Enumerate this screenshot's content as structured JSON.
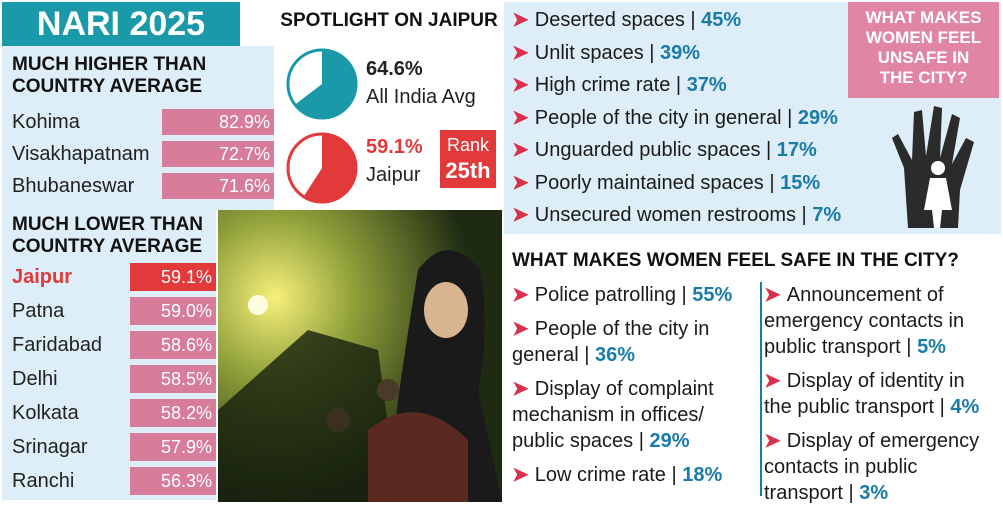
{
  "title": "NARI 2025",
  "higher": {
    "heading_line1": "MUCH HIGHER THAN",
    "heading_line2": "COUNTRY AVERAGE",
    "rows": [
      {
        "city": "Kohima",
        "value": "82.9%"
      },
      {
        "city": "Visakhapatnam",
        "value": "72.7%"
      },
      {
        "city": "Bhubaneswar",
        "value": "71.6%"
      }
    ]
  },
  "lower": {
    "heading_line1": "MUCH LOWER THAN",
    "heading_line2": "COUNTRY AVERAGE",
    "rows": [
      {
        "city": "Jaipur",
        "value": "59.1%"
      },
      {
        "city": "Patna",
        "value": "59.0%"
      },
      {
        "city": "Faridabad",
        "value": "58.6%"
      },
      {
        "city": "Delhi",
        "value": "58.5%"
      },
      {
        "city": "Kolkata",
        "value": "58.2%"
      },
      {
        "city": "Srinagar",
        "value": "57.9%"
      },
      {
        "city": "Ranchi",
        "value": "56.3%"
      }
    ]
  },
  "spotlight": {
    "title": "SPOTLIGHT ON JAIPUR",
    "all_india": {
      "value": "64.6%",
      "label": "All India Avg"
    },
    "jaipur": {
      "value": "59.1%",
      "label": "Jaipur"
    },
    "rank_label": "Rank",
    "rank_value": "25th"
  },
  "unsafe": {
    "question_line1": "WHAT MAKES",
    "question_line2": "WOMEN FEEL",
    "question_line3": "UNSAFE IN",
    "question_line4": "THE CITY?",
    "items": [
      {
        "text": "Deserted spaces |",
        "pct": "45%"
      },
      {
        "text": "Unlit spaces |",
        "pct": "39%"
      },
      {
        "text": "High crime rate |",
        "pct": "37%"
      },
      {
        "text": "People of the city in general |",
        "pct": "29%"
      },
      {
        "text": "Unguarded public spaces |",
        "pct": "17%"
      },
      {
        "text": "Poorly maintained spaces |",
        "pct": "15%"
      },
      {
        "text": "Unsecured women restrooms |",
        "pct": "7%"
      }
    ]
  },
  "safe": {
    "title": "WHAT MAKES WOMEN FEEL SAFE IN THE CITY?",
    "left": [
      {
        "l1": "Police patrolling |",
        "l2": "",
        "l3": "",
        "pct": "55%"
      },
      {
        "l1": "People of the city in",
        "l2": "general |",
        "l3": "",
        "pct": "36%"
      },
      {
        "l1": "Display of complaint",
        "l2": "mechanism in offices/",
        "l3": "public spaces |",
        "pct": "29%"
      },
      {
        "l1": "Low crime rate |",
        "l2": "",
        "l3": "",
        "pct": "18%"
      }
    ],
    "right": [
      {
        "l1": "Announcement of",
        "l2": "emergency contacts in",
        "l3": "public transport |",
        "pct": "5%"
      },
      {
        "l1": "Display of identity in",
        "l2": "the public transport |",
        "l3": "",
        "pct": "4%"
      },
      {
        "l1": "Display of emergency",
        "l2": "contacts in public",
        "l3": "transport |",
        "pct": "3%"
      }
    ]
  },
  "colors": {
    "teal": "#1a9aa8",
    "pink_bar": "#d77c9a",
    "highlight_red": "#e23a3a",
    "pct_blue": "#1a7aa8",
    "arrow_red": "#d9304b"
  },
  "chart_data": [
    {
      "type": "bar",
      "categories": [
        "Kohima",
        "Visakhapatnam",
        "Bhubaneswar"
      ],
      "values": [
        82.9,
        72.7,
        71.6
      ]
    },
    {
      "type": "bar",
      "categories": [
        "Jaipur",
        "Patna",
        "Faridabad",
        "Delhi",
        "Kolkata",
        "Srinagar",
        "Ranchi"
      ],
      "values": [
        59.1,
        59.0,
        58.6,
        58.5,
        58.2,
        57.9,
        56.3
      ]
    },
    {
      "type": "pie",
      "categories": [
        "All India Avg"
      ],
      "values": [
        64.6
      ]
    },
    {
      "type": "pie",
      "categories": [
        "Jaipur"
      ],
      "values": [
        59.1
      ]
    },
    {
      "type": "bar",
      "categories": [
        "Deserted spaces",
        "Unlit spaces",
        "High crime rate",
        "People of the city in general",
        "Unguarded public spaces",
        "Poorly maintained spaces",
        "Unsecured women restrooms"
      ],
      "values": [
        45,
        39,
        37,
        29,
        17,
        15,
        7
      ]
    },
    {
      "type": "bar",
      "categories": [
        "Police patrolling",
        "People of the city in general",
        "Display of complaint mechanism in offices/public spaces",
        "Low crime rate",
        "Announcement of emergency contacts in public transport",
        "Display of identity in the public transport",
        "Display of emergency contacts in public transport"
      ],
      "values": [
        55,
        36,
        29,
        18,
        5,
        4,
        3
      ]
    }
  ]
}
